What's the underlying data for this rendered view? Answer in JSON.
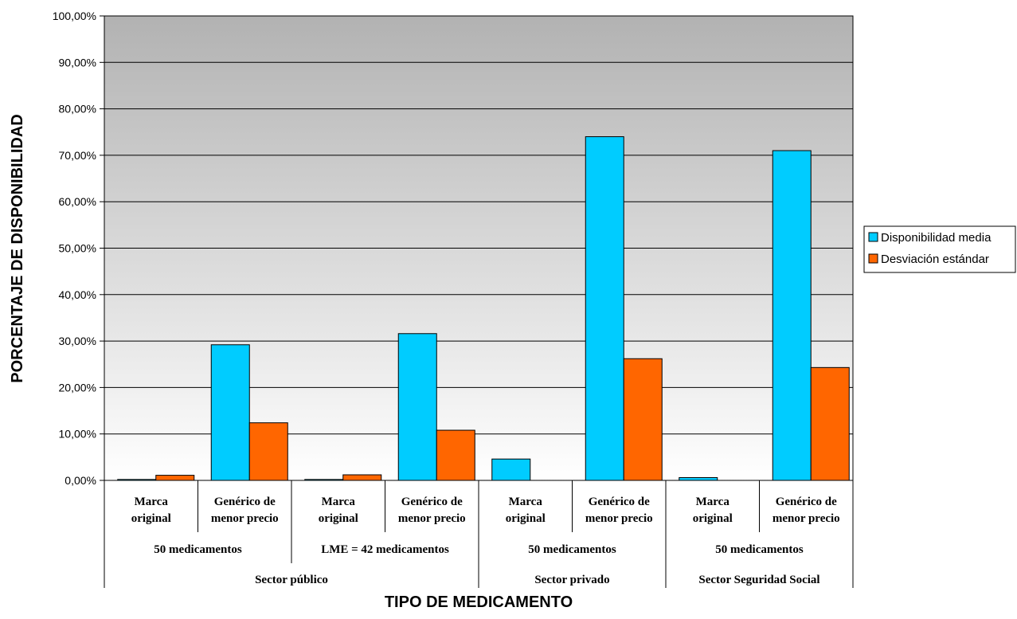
{
  "chart_data": {
    "type": "bar",
    "xlabel": "TIPO DE MEDICAMENTO",
    "ylabel": "PORCENTAJE DE DISPONIBILIDAD",
    "ylim": [
      0,
      100
    ],
    "yticks": [
      "0,00%",
      "10,00%",
      "20,00%",
      "30,00%",
      "40,00%",
      "50,00%",
      "60,00%",
      "70,00%",
      "80,00%",
      "90,00%",
      "100,00%"
    ],
    "grid": true,
    "legend_position": "right",
    "categories": [
      [
        "Marca",
        "original"
      ],
      [
        "Genérico de",
        "menor precio"
      ],
      [
        "Marca",
        "original"
      ],
      [
        "Genérico de",
        "menor precio"
      ],
      [
        "Marca",
        "original"
      ],
      [
        "Genérico de",
        "menor precio"
      ],
      [
        "Marca",
        "original"
      ],
      [
        "Genérico de",
        "menor precio"
      ]
    ],
    "groups_level2": [
      {
        "label": "50 medicamentos",
        "span": 2
      },
      {
        "label": "LME = 42 medicamentos",
        "span": 2
      },
      {
        "label": "50 medicamentos",
        "span": 2
      },
      {
        "label": "50 medicamentos",
        "span": 2
      }
    ],
    "groups_level3": [
      {
        "label": "Sector público",
        "span": 4
      },
      {
        "label": "Sector privado",
        "span": 2
      },
      {
        "label": "Sector Seguridad Social",
        "span": 2
      }
    ],
    "series": [
      {
        "name": "Disponibilidad media",
        "color": "#00ccff",
        "values": [
          0.2,
          29.2,
          0.2,
          31.6,
          4.6,
          74.0,
          0.6,
          71.0
        ]
      },
      {
        "name": "Desviación estándar",
        "color": "#ff6600",
        "values": [
          1.1,
          12.4,
          1.2,
          10.8,
          0.0,
          26.2,
          0.0,
          24.3
        ]
      }
    ]
  }
}
